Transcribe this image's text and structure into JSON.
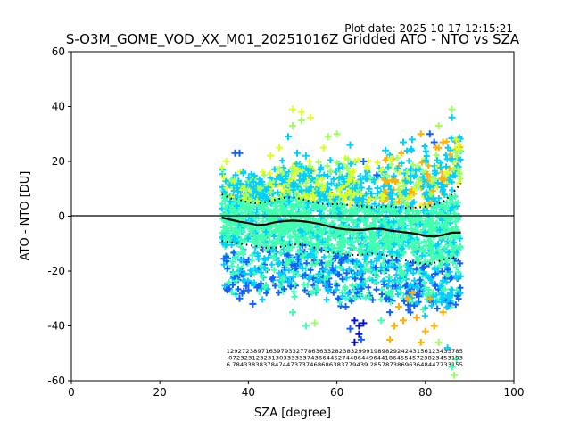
{
  "chart_data": {
    "type": "scatter",
    "plot_date_label": "Plot date: 2025-10-17 12:15:21",
    "title": "S-O3M_GOME_VOD_XX_M01_20251016Z Gridded ATO - NTO vs SZA",
    "xlabel": "SZA [degree]",
    "ylabel": "ATO - NTO [DU]",
    "xlim": [
      0,
      100
    ],
    "ylim": [
      -60,
      60
    ],
    "xticks": [
      0,
      20,
      40,
      60,
      80,
      100
    ],
    "yticks": [
      -60,
      -40,
      -20,
      0,
      20,
      40,
      60
    ],
    "grid": false,
    "zero_line": 0,
    "colors": {
      "teal": "#00d0ff",
      "mint": "#40ffb0",
      "yellow": "#e0ff20",
      "lime": "#a0ff60",
      "blue": "#1060ff",
      "navy": "#0010e0",
      "orange": "#ffb000",
      "darkblue": "#0000c0"
    },
    "series": [
      {
        "name": "mean",
        "style": "solid-black",
        "x": [
          34,
          36,
          38,
          40,
          42,
          44,
          46,
          48,
          50,
          52,
          54,
          56,
          58,
          60,
          62,
          64,
          66,
          68,
          70,
          72,
          74,
          76,
          78,
          80,
          82,
          84,
          86,
          88
        ],
        "y": [
          -0.5,
          -1.3,
          -2,
          -2.5,
          -3.2,
          -3,
          -2.2,
          -1.8,
          -1.6,
          -1.8,
          -2.2,
          -2.8,
          -3.6,
          -4.4,
          -4.8,
          -5,
          -5,
          -4.6,
          -4.6,
          -5.2,
          -5.6,
          -6,
          -6.4,
          -7.2,
          -7.4,
          -6.8,
          -6,
          -6
        ]
      },
      {
        "name": "upper-band",
        "style": "dotted-black",
        "x": [
          34,
          36,
          38,
          40,
          42,
          44,
          46,
          48,
          50,
          52,
          54,
          56,
          58,
          60,
          62,
          64,
          66,
          68,
          70,
          72,
          74,
          76,
          78,
          80,
          82,
          84,
          86,
          88
        ],
        "y": [
          8,
          6.5,
          6,
          5,
          4.7,
          5.2,
          6,
          6.7,
          6.9,
          6.3,
          5.4,
          4.7,
          4.3,
          4.5,
          4.2,
          4,
          3.6,
          3.2,
          3.4,
          3.7,
          3.2,
          3,
          3.2,
          3.5,
          4.2,
          5.3,
          8,
          12
        ]
      },
      {
        "name": "lower-band",
        "style": "dotted-black",
        "x": [
          34,
          36,
          38,
          40,
          42,
          44,
          46,
          48,
          50,
          52,
          54,
          56,
          58,
          60,
          62,
          64,
          66,
          68,
          70,
          72,
          74,
          76,
          78,
          80,
          82,
          84,
          86,
          88
        ],
        "y": [
          -9,
          -9.4,
          -10,
          -10.5,
          -11,
          -11.5,
          -11.5,
          -11,
          -10.4,
          -10.2,
          -11,
          -12,
          -13,
          -13.6,
          -14,
          -14.2,
          -14,
          -13.6,
          -14,
          -14.6,
          -15.2,
          -16.4,
          -17,
          -17.4,
          -17,
          -15.8,
          -15,
          -16
        ]
      }
    ],
    "scatter_cloud": {
      "x_range": [
        34,
        88
      ],
      "core_color": "mint",
      "upper_colors": [
        "teal",
        "yellow",
        "lime",
        "orange"
      ],
      "lower_colors": [
        "teal",
        "blue",
        "mint"
      ],
      "outliers": [
        {
          "x": 37,
          "y": 23,
          "c": "blue"
        },
        {
          "x": 38,
          "y": 23,
          "c": "blue"
        },
        {
          "x": 40,
          "y": -27,
          "c": "blue"
        },
        {
          "x": 42,
          "y": -26,
          "c": "blue"
        },
        {
          "x": 38,
          "y": -30,
          "c": "blue"
        },
        {
          "x": 41,
          "y": -32,
          "c": "blue"
        },
        {
          "x": 50,
          "y": 39,
          "c": "yellow"
        },
        {
          "x": 52,
          "y": 38,
          "c": "yellow"
        },
        {
          "x": 54,
          "y": 36,
          "c": "yellow"
        },
        {
          "x": 50,
          "y": 33,
          "c": "lime"
        },
        {
          "x": 49,
          "y": 29,
          "c": "teal"
        },
        {
          "x": 58,
          "y": 29,
          "c": "lime"
        },
        {
          "x": 60,
          "y": 30,
          "c": "lime"
        },
        {
          "x": 51,
          "y": 23,
          "c": "teal"
        },
        {
          "x": 53,
          "y": 22,
          "c": "teal"
        },
        {
          "x": 52,
          "y": 35,
          "c": "lime"
        },
        {
          "x": 57,
          "y": 25,
          "c": "yellow"
        },
        {
          "x": 47,
          "y": 25,
          "c": "yellow"
        },
        {
          "x": 64,
          "y": -38,
          "c": "navy"
        },
        {
          "x": 65,
          "y": -40,
          "c": "navy"
        },
        {
          "x": 66,
          "y": -39,
          "c": "navy"
        },
        {
          "x": 63,
          "y": -41,
          "c": "blue"
        },
        {
          "x": 65,
          "y": -43,
          "c": "navy"
        },
        {
          "x": 65.5,
          "y": -45,
          "c": "blue"
        },
        {
          "x": 64,
          "y": -46,
          "c": "darkblue"
        },
        {
          "x": 62,
          "y": -33,
          "c": "blue"
        },
        {
          "x": 55,
          "y": -39,
          "c": "lime"
        },
        {
          "x": 50,
          "y": -35,
          "c": "mint"
        },
        {
          "x": 53,
          "y": -40,
          "c": "mint"
        },
        {
          "x": 72,
          "y": -35,
          "c": "blue"
        },
        {
          "x": 73,
          "y": -40,
          "c": "orange"
        },
        {
          "x": 74,
          "y": -33,
          "c": "orange"
        },
        {
          "x": 76,
          "y": -30,
          "c": "orange"
        },
        {
          "x": 77,
          "y": -28,
          "c": "orange"
        },
        {
          "x": 72,
          "y": -45,
          "c": "orange"
        },
        {
          "x": 75,
          "y": -38,
          "c": "orange"
        },
        {
          "x": 78,
          "y": -37,
          "c": "orange"
        },
        {
          "x": 80,
          "y": -42,
          "c": "orange"
        },
        {
          "x": 82,
          "y": -40,
          "c": "orange"
        },
        {
          "x": 84,
          "y": -35,
          "c": "orange"
        },
        {
          "x": 81,
          "y": -30,
          "c": "orange"
        },
        {
          "x": 85,
          "y": -48,
          "c": "teal"
        },
        {
          "x": 86,
          "y": -55,
          "c": "mint"
        },
        {
          "x": 87,
          "y": -52,
          "c": "mint"
        },
        {
          "x": 86.5,
          "y": -58,
          "c": "lime"
        },
        {
          "x": 83,
          "y": -46,
          "c": "lime"
        },
        {
          "x": 79,
          "y": -46,
          "c": "orange"
        },
        {
          "x": 70,
          "y": -38,
          "c": "mint"
        },
        {
          "x": 86,
          "y": 39,
          "c": "lime"
        },
        {
          "x": 86,
          "y": 36,
          "c": "teal"
        },
        {
          "x": 83,
          "y": 33,
          "c": "lime"
        },
        {
          "x": 79,
          "y": 30,
          "c": "orange"
        },
        {
          "x": 81,
          "y": 30,
          "c": "blue"
        },
        {
          "x": 82,
          "y": 27,
          "c": "blue"
        },
        {
          "x": 84,
          "y": 27,
          "c": "orange"
        },
        {
          "x": 77,
          "y": 28,
          "c": "teal"
        },
        {
          "x": 75,
          "y": 27,
          "c": "teal"
        },
        {
          "x": 71,
          "y": 24,
          "c": "teal"
        },
        {
          "x": 63,
          "y": 26,
          "c": "teal"
        },
        {
          "x": 66,
          "y": 20,
          "c": "blue"
        },
        {
          "x": 69,
          "y": 15,
          "c": "blue"
        },
        {
          "x": 87,
          "y": 28,
          "c": "yellow"
        },
        {
          "x": 45,
          "y": 22,
          "c": "yellow"
        },
        {
          "x": 35,
          "y": 20,
          "c": "yellow"
        }
      ]
    },
    "count_rows": [
      "1292723897163979332778636332823832999198982924243156123433785",
      "-072323123231303333337436644527448644964418645545723823453193",
      "6 78433838378474473737468686383779439 285787386963648447733155"
    ]
  }
}
